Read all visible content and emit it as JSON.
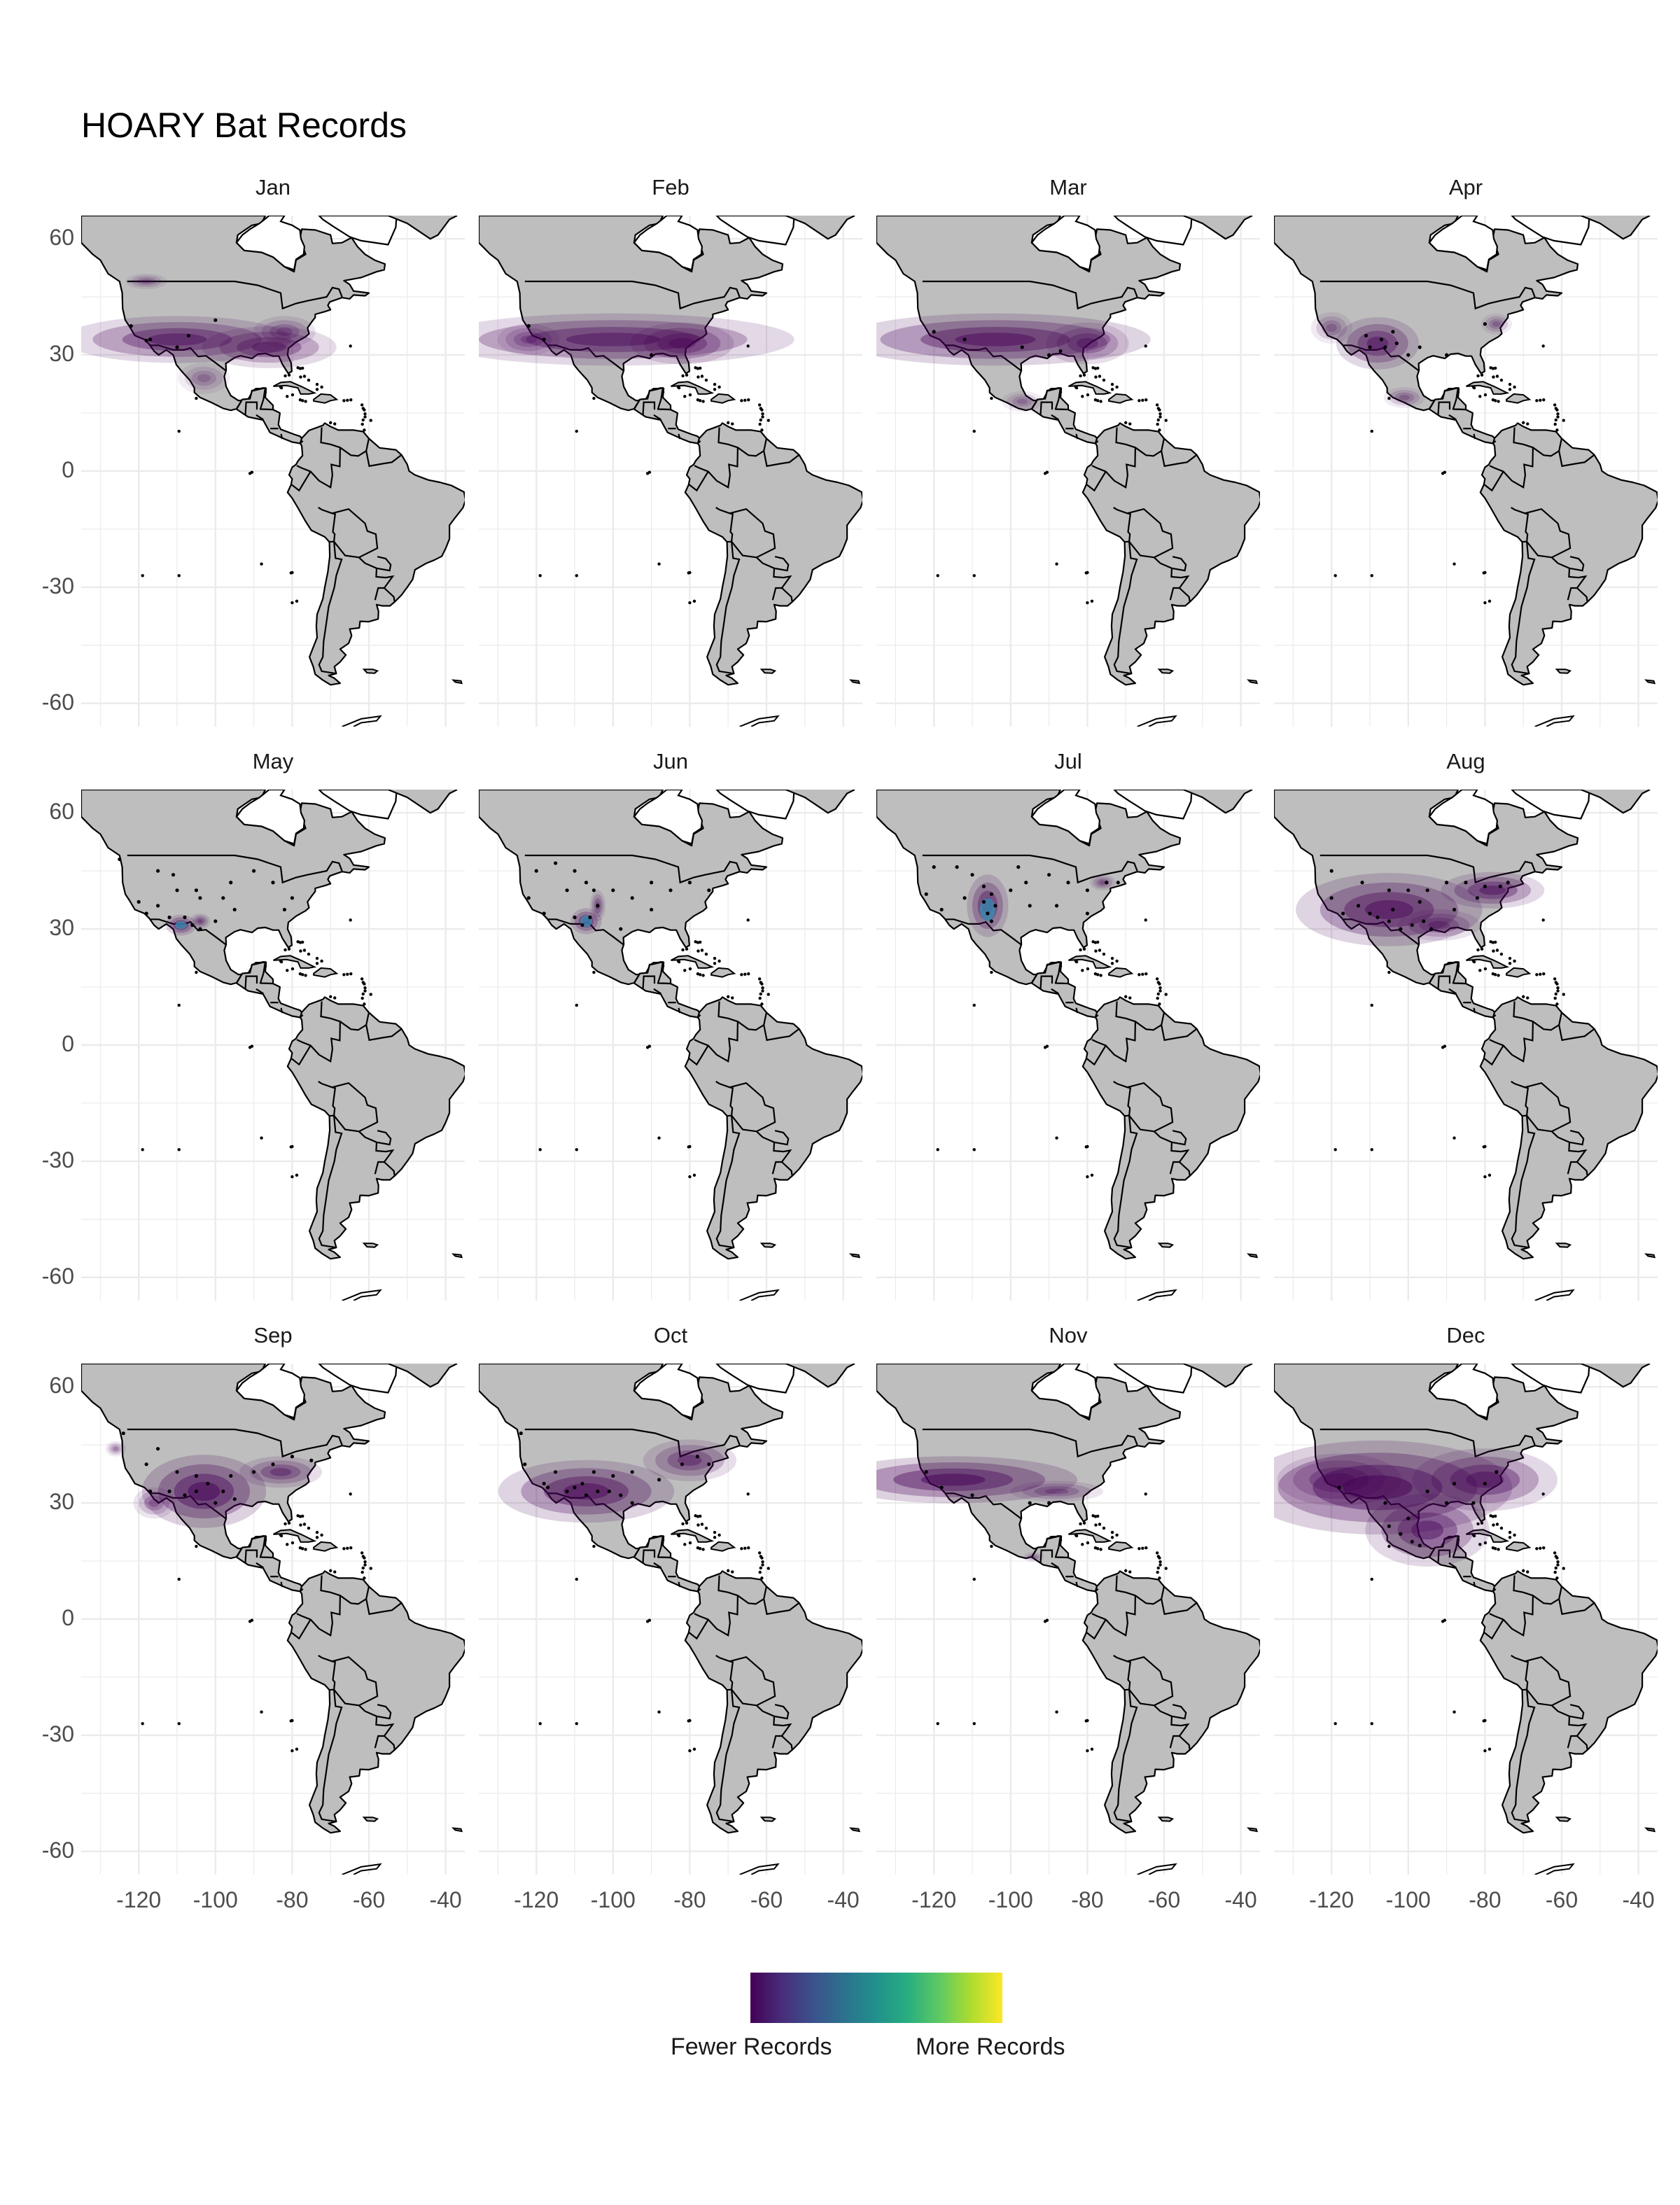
{
  "title": "HOARY Bat Records",
  "panels": [
    {
      "month": "Jan",
      "blobs": [
        [
          -110,
          34,
          22,
          4.5,
          0.55
        ],
        [
          -86,
          32,
          13,
          4,
          0.5
        ],
        [
          -103,
          24,
          5,
          3,
          0.25
        ],
        [
          -118,
          49,
          4,
          1.5,
          0.3
        ],
        [
          -82,
          36,
          6,
          3,
          0.35
        ]
      ]
    },
    {
      "month": "Feb",
      "blobs": [
        [
          -100,
          34,
          35,
          5,
          0.55
        ],
        [
          -82,
          33,
          10,
          4,
          0.5
        ],
        [
          -122,
          34,
          6,
          3,
          0.35
        ]
      ]
    },
    {
      "month": "Mar",
      "blobs": [
        [
          -104,
          34,
          30,
          5,
          0.6
        ],
        [
          -80,
          33,
          8,
          4,
          0.45
        ],
        [
          -97,
          18,
          4,
          2,
          0.25
        ]
      ]
    },
    {
      "month": "Apr",
      "blobs": [
        [
          -108,
          33,
          8,
          5,
          0.55
        ],
        [
          -120,
          37,
          4,
          3,
          0.3
        ],
        [
          -101,
          19,
          4,
          2,
          0.3
        ],
        [
          -77,
          38,
          3,
          2,
          0.3
        ]
      ]
    },
    {
      "month": "May",
      "blobs": [
        [
          -109,
          31,
          3,
          2,
          0.55
        ],
        [
          -104,
          32,
          2,
          1.5,
          0.4
        ]
      ],
      "hot": [
        [
          -109,
          31,
          1.5,
          1
        ]
      ]
    },
    {
      "month": "Jun",
      "blobs": [
        [
          -107,
          32,
          3,
          2.5,
          0.55
        ],
        [
          -104,
          36,
          1.5,
          3,
          0.4
        ]
      ],
      "hot": [
        [
          -107,
          32,
          1.5,
          1.5
        ]
      ]
    },
    {
      "month": "Jul",
      "blobs": [
        [
          -106,
          36,
          4,
          6,
          0.55
        ],
        [
          -76,
          42,
          2.5,
          1.5,
          0.35
        ]
      ],
      "hot": [
        [
          -106,
          35,
          2,
          3
        ]
      ]
    },
    {
      "month": "Aug",
      "blobs": [
        [
          -105,
          35,
          18,
          7,
          0.6
        ],
        [
          -78,
          40,
          10,
          3.5,
          0.55
        ],
        [
          -92,
          31,
          8,
          3,
          0.4
        ]
      ]
    },
    {
      "month": "Sep",
      "blobs": [
        [
          -103,
          33,
          12,
          7,
          0.65
        ],
        [
          -83,
          38,
          8,
          3,
          0.45
        ],
        [
          -116,
          30,
          4,
          3,
          0.35
        ],
        [
          -126,
          44,
          2,
          1.5,
          0.3
        ]
      ]
    },
    {
      "month": "Oct",
      "blobs": [
        [
          -107,
          33,
          17,
          6,
          0.6
        ],
        [
          -80,
          41,
          9,
          4,
          0.45
        ]
      ]
    },
    {
      "month": "Nov",
      "blobs": [
        [
          -115,
          36,
          24,
          4.5,
          0.65
        ],
        [
          -88,
          33,
          9,
          2,
          0.35
        ],
        [
          -94,
          16,
          2,
          1,
          0.25
        ]
      ]
    },
    {
      "month": "Dec",
      "blobs": [
        [
          -108,
          34,
          26,
          9,
          0.65
        ],
        [
          -95,
          23,
          12,
          7,
          0.55
        ],
        [
          -80,
          36,
          14,
          6,
          0.55
        ],
        [
          -118,
          36,
          12,
          5,
          0.45
        ]
      ]
    }
  ],
  "y_ticks": [
    "60",
    "30",
    "0",
    "-30",
    "-60"
  ],
  "x_ticks": [
    "-120",
    "-100",
    "-80",
    "-60",
    "-40"
  ],
  "y_values": [
    60,
    30,
    0,
    -30,
    -60
  ],
  "x_values": [
    -120,
    -100,
    -80,
    -60,
    -40
  ],
  "lon_range": [
    -135,
    -35
  ],
  "lat_range": [
    -66,
    66
  ],
  "legend": {
    "low_label": "Fewer Records",
    "high_label": "More Records"
  },
  "colors": {
    "land": "#bebebe",
    "outline": "#000000",
    "density_low": "#440154",
    "density_high": "#fde725",
    "grid": "#ebebeb"
  }
}
